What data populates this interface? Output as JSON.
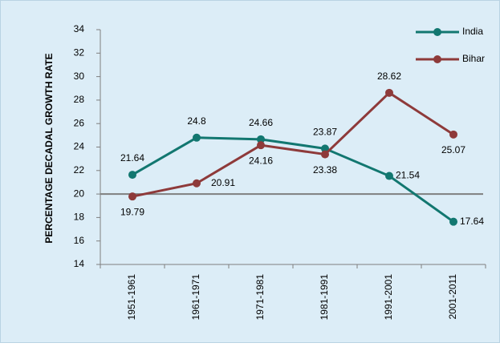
{
  "chart_data": {
    "type": "line",
    "y_axis_label": "PERCENTAGE DECADAL GROWTH RATE",
    "categories": [
      "1951-1961",
      "1961-1971",
      "1971-1981",
      "1981-1991",
      "1991-2001",
      "2001-2011"
    ],
    "series": [
      {
        "name": "India",
        "color": "#127770",
        "values": [
          21.64,
          24.8,
          24.66,
          23.87,
          21.54,
          17.64
        ]
      },
      {
        "name": "Bihar",
        "color": "#8e3a3a",
        "values": [
          19.79,
          20.91,
          24.16,
          23.38,
          28.62,
          25.07
        ]
      }
    ],
    "reference_line": {
      "value": 20,
      "color": "#7f7f7f"
    },
    "ylim": [
      14,
      34
    ],
    "yticks": [
      14,
      16,
      18,
      20,
      22,
      24,
      26,
      28,
      30,
      32,
      34
    ],
    "legend": "top-right"
  }
}
